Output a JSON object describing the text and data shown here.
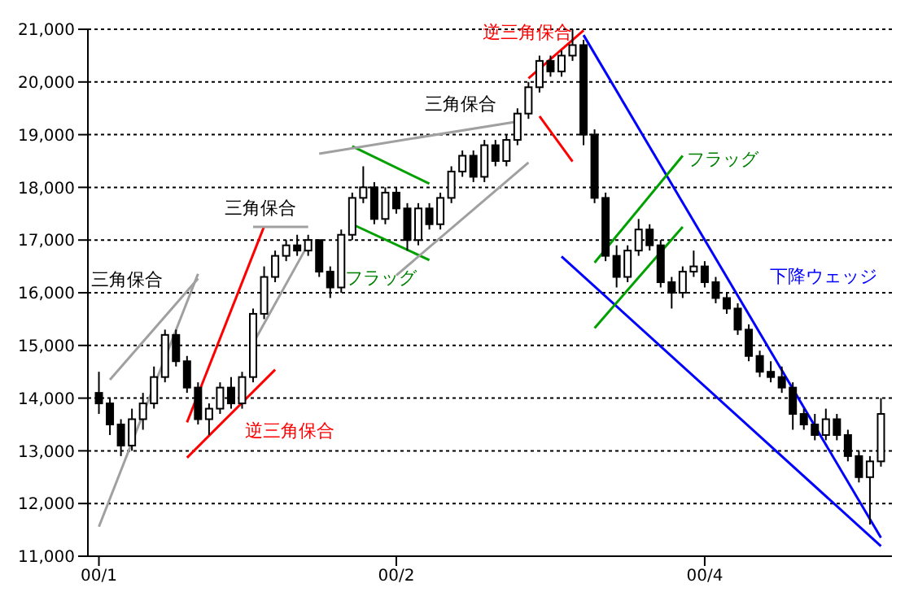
{
  "chart_data": {
    "type": "candlestick",
    "categories": [
      "00/1",
      null,
      null,
      null,
      null,
      null,
      null,
      null,
      null,
      null,
      null,
      null,
      null,
      null,
      null,
      null,
      null,
      null,
      null,
      null,
      null,
      null,
      null,
      null,
      null,
      null,
      null,
      "00/2",
      null,
      null,
      null,
      null,
      null,
      null,
      null,
      null,
      null,
      null,
      null,
      null,
      null,
      null,
      null,
      null,
      null,
      null,
      null,
      null,
      null,
      null,
      null,
      null,
      null,
      null,
      null,
      "00/4",
      null,
      null,
      null,
      null,
      null,
      null,
      null,
      null,
      null,
      null,
      null,
      null,
      null,
      null,
      null,
      null
    ],
    "ohlc": [
      [
        14100,
        14500,
        13700,
        13900
      ],
      [
        13900,
        14000,
        13300,
        13500
      ],
      [
        13500,
        13600,
        12900,
        13100
      ],
      [
        13100,
        13800,
        13000,
        13600
      ],
      [
        13600,
        14100,
        13400,
        13900
      ],
      [
        13900,
        14600,
        13800,
        14400
      ],
      [
        14400,
        15300,
        14300,
        15200
      ],
      [
        15200,
        15300,
        14600,
        14700
      ],
      [
        14700,
        14800,
        14100,
        14200
      ],
      [
        14200,
        14300,
        13500,
        13600
      ],
      [
        13600,
        13900,
        13300,
        13800
      ],
      [
        13800,
        14300,
        13700,
        14200
      ],
      [
        14200,
        14400,
        13800,
        13900
      ],
      [
        13900,
        14500,
        13800,
        14400
      ],
      [
        14400,
        15700,
        14300,
        15600
      ],
      [
        15600,
        16500,
        15500,
        16300
      ],
      [
        16300,
        16800,
        16200,
        16700
      ],
      [
        16700,
        17000,
        16600,
        16900
      ],
      [
        16900,
        17100,
        16700,
        16800
      ],
      [
        16800,
        17100,
        16700,
        17000
      ],
      [
        17000,
        17000,
        16300,
        16400
      ],
      [
        16400,
        16500,
        15900,
        16100
      ],
      [
        16100,
        17200,
        16000,
        17100
      ],
      [
        17100,
        17900,
        17000,
        17800
      ],
      [
        17800,
        18400,
        17700,
        18000
      ],
      [
        18000,
        18100,
        17300,
        17400
      ],
      [
        17400,
        18000,
        17300,
        17900
      ],
      [
        17900,
        18000,
        17500,
        17600
      ],
      [
        17600,
        17700,
        16800,
        17000
      ],
      [
        17000,
        17700,
        16900,
        17600
      ],
      [
        17600,
        17700,
        17200,
        17300
      ],
      [
        17300,
        17900,
        17200,
        17800
      ],
      [
        17800,
        18400,
        17700,
        18300
      ],
      [
        18300,
        18700,
        18200,
        18600
      ],
      [
        18600,
        18700,
        18100,
        18200
      ],
      [
        18200,
        18900,
        18100,
        18800
      ],
      [
        18800,
        18900,
        18400,
        18500
      ],
      [
        18500,
        19000,
        18400,
        18900
      ],
      [
        18900,
        19500,
        18800,
        19400
      ],
      [
        19400,
        20000,
        19300,
        19900
      ],
      [
        19900,
        20500,
        19800,
        20400
      ],
      [
        20400,
        20500,
        20100,
        20200
      ],
      [
        20200,
        20600,
        20100,
        20500
      ],
      [
        20500,
        21000,
        20400,
        20700
      ],
      [
        20700,
        20800,
        18800,
        19000
      ],
      [
        19000,
        19100,
        17700,
        17800
      ],
      [
        17800,
        17900,
        16600,
        16700
      ],
      [
        16700,
        16900,
        16100,
        16300
      ],
      [
        16300,
        16900,
        16200,
        16800
      ],
      [
        16800,
        17400,
        16700,
        17200
      ],
      [
        17200,
        17300,
        16800,
        16900
      ],
      [
        16900,
        17000,
        16100,
        16200
      ],
      [
        16200,
        16300,
        15700,
        16000
      ],
      [
        16000,
        16500,
        15900,
        16400
      ],
      [
        16400,
        16800,
        16300,
        16500
      ],
      [
        16500,
        16600,
        16100,
        16200
      ],
      [
        16200,
        16300,
        15800,
        15900
      ],
      [
        15900,
        16000,
        15600,
        15700
      ],
      [
        15700,
        15800,
        15200,
        15300
      ],
      [
        15300,
        15400,
        14700,
        14800
      ],
      [
        14800,
        14900,
        14400,
        14500
      ],
      [
        14500,
        14700,
        14300,
        14400
      ],
      [
        14400,
        14600,
        14100,
        14200
      ],
      [
        14200,
        14300,
        13400,
        13700
      ],
      [
        13700,
        13800,
        13400,
        13500
      ],
      [
        13500,
        13700,
        13200,
        13300
      ],
      [
        13300,
        13800,
        13200,
        13600
      ],
      [
        13600,
        13700,
        13200,
        13300
      ],
      [
        13300,
        13400,
        12800,
        12900
      ],
      [
        12900,
        13000,
        12400,
        12500
      ],
      [
        12500,
        12900,
        11600,
        12800
      ],
      [
        12800,
        14000,
        12700,
        13700
      ]
    ],
    "series": [
      {
        "type": "line",
        "color": "#a0a0a0",
        "values": [
          11560,
          null,
          null,
          null,
          null,
          null,
          null,
          null,
          null,
          16360,
          null,
          null,
          null,
          null,
          null,
          null,
          null,
          null,
          null,
          null,
          null,
          null,
          null,
          null,
          null,
          null,
          null,
          null,
          null,
          null,
          null,
          null,
          null,
          null,
          null,
          null,
          null,
          null,
          null,
          null,
          null,
          null,
          null,
          null,
          null,
          null,
          null,
          null,
          null,
          null,
          null,
          null,
          null,
          null,
          null,
          null,
          null,
          null,
          null,
          null,
          null,
          null,
          null,
          null,
          null,
          null,
          null,
          null,
          null,
          null,
          null,
          null
        ]
      },
      {
        "type": "line",
        "color": "#a0a0a0",
        "values": [
          null,
          14350,
          null,
          null,
          null,
          null,
          null,
          null,
          null,
          16270,
          null,
          null,
          null,
          null,
          null,
          null,
          null,
          null,
          null,
          null,
          null,
          null,
          null,
          null,
          null,
          null,
          null,
          null,
          null,
          null,
          null,
          null,
          null,
          null,
          null,
          null,
          null,
          null,
          null,
          null,
          null,
          null,
          null,
          null,
          null,
          null,
          null,
          null,
          null,
          null,
          null,
          null,
          null,
          null,
          null,
          null,
          null,
          null,
          null,
          null,
          null,
          null,
          null,
          null,
          null,
          null,
          null,
          null,
          null,
          null,
          null,
          null
        ]
      },
      {
        "type": "line",
        "color": "#ff0000",
        "values": [
          null,
          null,
          null,
          null,
          null,
          null,
          null,
          null,
          12870,
          null,
          null,
          null,
          null,
          null,
          null,
          null,
          14540,
          null,
          null,
          null,
          null,
          null,
          null,
          null,
          null,
          null,
          null,
          null,
          null,
          null,
          null,
          null,
          null,
          null,
          null,
          null,
          null,
          null,
          null,
          null,
          null,
          null,
          null,
          null,
          null,
          null,
          null,
          null,
          null,
          null,
          null,
          null,
          null,
          null,
          null,
          null,
          null,
          null,
          null,
          null,
          null,
          null,
          null,
          null,
          null,
          null,
          null,
          null,
          null,
          null,
          null,
          null
        ]
      },
      {
        "type": "line",
        "color": "#ff0000",
        "values": [
          null,
          null,
          null,
          null,
          null,
          null,
          null,
          null,
          13540,
          null,
          null,
          null,
          null,
          null,
          null,
          17260,
          null,
          null,
          null,
          null,
          null,
          null,
          null,
          null,
          null,
          null,
          null,
          null,
          null,
          null,
          null,
          null,
          null,
          null,
          null,
          null,
          null,
          null,
          null,
          null,
          null,
          null,
          null,
          null,
          null,
          null,
          null,
          null,
          null,
          null,
          null,
          null,
          null,
          null,
          null,
          null,
          null,
          null,
          null,
          null,
          null,
          null,
          null,
          null,
          null,
          null,
          null,
          null,
          null,
          null,
          null,
          null
        ]
      },
      {
        "type": "line",
        "color": "#a0a0a0",
        "values": [
          null,
          null,
          null,
          null,
          null,
          null,
          null,
          null,
          null,
          null,
          null,
          null,
          null,
          null,
          17250,
          null,
          null,
          null,
          null,
          17250,
          null,
          null,
          null,
          null,
          null,
          null,
          null,
          null,
          null,
          null,
          null,
          null,
          null,
          null,
          null,
          null,
          null,
          null,
          null,
          null,
          null,
          null,
          null,
          null,
          null,
          null,
          null,
          null,
          null,
          null,
          null,
          null,
          null,
          null,
          null,
          null,
          null,
          null,
          null,
          null,
          null,
          null,
          null,
          null,
          null,
          null,
          null,
          null,
          null,
          null,
          null,
          null
        ]
      },
      {
        "type": "line",
        "color": "#a0a0a0",
        "values": [
          null,
          null,
          null,
          null,
          null,
          null,
          null,
          null,
          null,
          null,
          null,
          null,
          null,
          null,
          15040,
          null,
          null,
          null,
          null,
          16920,
          null,
          null,
          null,
          null,
          null,
          null,
          null,
          null,
          null,
          null,
          null,
          null,
          null,
          null,
          null,
          null,
          null,
          null,
          null,
          null,
          null,
          null,
          null,
          null,
          null,
          null,
          null,
          null,
          null,
          null,
          null,
          null,
          null,
          null,
          null,
          null,
          null,
          null,
          null,
          null,
          null,
          null,
          null,
          null,
          null,
          null,
          null,
          null,
          null,
          null,
          null,
          null
        ]
      },
      {
        "type": "line",
        "color": "#00a000",
        "values": [
          null,
          null,
          null,
          null,
          null,
          null,
          null,
          null,
          null,
          null,
          null,
          null,
          null,
          null,
          null,
          null,
          null,
          null,
          null,
          null,
          null,
          null,
          null,
          18780,
          null,
          null,
          null,
          null,
          null,
          null,
          18070,
          null,
          null,
          null,
          null,
          null,
          null,
          null,
          null,
          null,
          null,
          null,
          null,
          null,
          null,
          null,
          null,
          null,
          null,
          null,
          null,
          null,
          null,
          null,
          null,
          null,
          null,
          null,
          null,
          null,
          null,
          null,
          null,
          null,
          null,
          null,
          null,
          null,
          null,
          null,
          null,
          null
        ]
      },
      {
        "type": "line",
        "color": "#00a000",
        "values": [
          null,
          null,
          null,
          null,
          null,
          null,
          null,
          null,
          null,
          null,
          null,
          null,
          null,
          null,
          null,
          null,
          null,
          null,
          null,
          null,
          null,
          null,
          null,
          17300,
          null,
          null,
          null,
          null,
          null,
          null,
          16620,
          null,
          null,
          null,
          null,
          null,
          null,
          null,
          null,
          null,
          null,
          null,
          null,
          null,
          null,
          null,
          null,
          null,
          null,
          null,
          null,
          null,
          null,
          null,
          null,
          null,
          null,
          null,
          null,
          null,
          null,
          null,
          null,
          null,
          null,
          null,
          null,
          null,
          null,
          null,
          null,
          null
        ]
      },
      {
        "type": "line",
        "color": "#a0a0a0",
        "values": [
          null,
          null,
          null,
          null,
          null,
          null,
          null,
          null,
          null,
          null,
          null,
          null,
          null,
          null,
          null,
          null,
          null,
          null,
          null,
          null,
          18640,
          null,
          null,
          null,
          null,
          null,
          null,
          null,
          null,
          null,
          null,
          null,
          null,
          null,
          null,
          null,
          null,
          null,
          19250,
          null,
          null,
          null,
          null,
          null,
          null,
          null,
          null,
          null,
          null,
          null,
          null,
          null,
          null,
          null,
          null,
          null,
          null,
          null,
          null,
          null,
          null,
          null,
          null,
          null,
          null,
          null,
          null,
          null,
          null,
          null,
          null,
          null
        ]
      },
      {
        "type": "line",
        "color": "#a0a0a0",
        "values": [
          null,
          null,
          null,
          null,
          null,
          null,
          null,
          null,
          null,
          null,
          null,
          null,
          null,
          null,
          null,
          null,
          null,
          null,
          null,
          null,
          null,
          null,
          null,
          null,
          null,
          null,
          null,
          16330,
          null,
          null,
          null,
          null,
          null,
          null,
          null,
          null,
          null,
          null,
          null,
          18470,
          null,
          null,
          null,
          null,
          null,
          null,
          null,
          null,
          null,
          null,
          null,
          null,
          null,
          null,
          null,
          null,
          null,
          null,
          null,
          null,
          null,
          null,
          null,
          null,
          null,
          null,
          null,
          null,
          null,
          null,
          null,
          null
        ]
      },
      {
        "type": "line",
        "color": "#ff0000",
        "values": [
          null,
          null,
          null,
          null,
          null,
          null,
          null,
          null,
          null,
          null,
          null,
          null,
          null,
          null,
          null,
          null,
          null,
          null,
          null,
          null,
          null,
          null,
          null,
          null,
          null,
          null,
          null,
          null,
          null,
          null,
          null,
          null,
          null,
          null,
          null,
          null,
          null,
          null,
          null,
          20070,
          null,
          null,
          null,
          null,
          20980,
          null,
          null,
          null,
          null,
          null,
          null,
          null,
          null,
          null,
          null,
          null,
          null,
          null,
          null,
          null,
          null,
          null,
          null,
          null,
          null,
          null,
          null,
          null,
          null,
          null,
          null,
          null
        ]
      },
      {
        "type": "line",
        "color": "#ff0000",
        "values": [
          null,
          null,
          null,
          null,
          null,
          null,
          null,
          null,
          null,
          null,
          null,
          null,
          null,
          null,
          null,
          null,
          null,
          null,
          null,
          null,
          null,
          null,
          null,
          null,
          null,
          null,
          null,
          null,
          null,
          null,
          null,
          null,
          null,
          null,
          null,
          null,
          null,
          null,
          null,
          null,
          19350,
          null,
          null,
          18490,
          null,
          null,
          null,
          null,
          null,
          null,
          null,
          null,
          null,
          null,
          null,
          null,
          null,
          null,
          null,
          null,
          null,
          null,
          null,
          null,
          null,
          null,
          null,
          null,
          null,
          null,
          null,
          null
        ]
      },
      {
        "type": "line",
        "color": "#0000ff",
        "values": [
          null,
          null,
          null,
          null,
          null,
          null,
          null,
          null,
          null,
          null,
          null,
          null,
          null,
          null,
          null,
          null,
          null,
          null,
          null,
          null,
          null,
          null,
          null,
          null,
          null,
          null,
          null,
          null,
          null,
          null,
          null,
          null,
          null,
          null,
          null,
          null,
          null,
          null,
          null,
          null,
          null,
          null,
          null,
          null,
          20890,
          null,
          null,
          null,
          null,
          null,
          null,
          null,
          null,
          null,
          null,
          null,
          null,
          null,
          null,
          null,
          null,
          null,
          null,
          null,
          null,
          null,
          null,
          null,
          null,
          null,
          null,
          11350
        ]
      },
      {
        "type": "line",
        "color": "#0000ff",
        "values": [
          null,
          null,
          null,
          null,
          null,
          null,
          null,
          null,
          null,
          null,
          null,
          null,
          null,
          null,
          null,
          null,
          null,
          null,
          null,
          null,
          null,
          null,
          null,
          null,
          null,
          null,
          null,
          null,
          null,
          null,
          null,
          null,
          null,
          null,
          null,
          null,
          null,
          null,
          null,
          null,
          null,
          null,
          16690,
          null,
          null,
          null,
          null,
          null,
          null,
          null,
          null,
          null,
          null,
          null,
          null,
          null,
          null,
          null,
          null,
          null,
          null,
          null,
          null,
          null,
          null,
          null,
          null,
          null,
          null,
          null,
          null,
          11190
        ]
      },
      {
        "type": "line",
        "color": "#00a000",
        "values": [
          null,
          null,
          null,
          null,
          null,
          null,
          null,
          null,
          null,
          null,
          null,
          null,
          null,
          null,
          null,
          null,
          null,
          null,
          null,
          null,
          null,
          null,
          null,
          null,
          null,
          null,
          null,
          null,
          null,
          null,
          null,
          null,
          null,
          null,
          null,
          null,
          null,
          null,
          null,
          null,
          null,
          null,
          null,
          null,
          null,
          16570,
          null,
          null,
          null,
          null,
          null,
          null,
          null,
          18600,
          null,
          null,
          null,
          null,
          null,
          null,
          null,
          null,
          null,
          null,
          null,
          null,
          null,
          null,
          null,
          null,
          null,
          null
        ]
      },
      {
        "type": "line",
        "color": "#00a000",
        "values": [
          null,
          null,
          null,
          null,
          null,
          null,
          null,
          null,
          null,
          null,
          null,
          null,
          null,
          null,
          null,
          null,
          null,
          null,
          null,
          null,
          null,
          null,
          null,
          null,
          null,
          null,
          null,
          null,
          null,
          null,
          null,
          null,
          null,
          null,
          null,
          null,
          null,
          null,
          null,
          null,
          null,
          null,
          null,
          null,
          null,
          15330,
          null,
          null,
          null,
          null,
          null,
          null,
          null,
          17250,
          null,
          null,
          null,
          null,
          null,
          null,
          null,
          null,
          null,
          null,
          null,
          null,
          null,
          null,
          null,
          null,
          null,
          null
        ]
      }
    ],
    "annotations": [
      "三角保合",
      "三角保合",
      "逆三角保合",
      "フラッグ",
      "三角保合",
      "逆三角保合",
      "フラッグ",
      "下降ウェッジ"
    ],
    "ylim": [
      11000,
      21000
    ],
    "yticks": [
      {
        "value": 11000,
        "label": "11,000"
      },
      {
        "value": 12000,
        "label": "12,000"
      },
      {
        "value": 13000,
        "label": "13,000"
      },
      {
        "value": 14000,
        "label": "14,000"
      },
      {
        "value": 15000,
        "label": "15,000"
      },
      {
        "value": 16000,
        "label": "16,000"
      },
      {
        "value": 17000,
        "label": "17,000"
      },
      {
        "value": 18000,
        "label": "18,000"
      },
      {
        "value": 19000,
        "label": "19,000"
      },
      {
        "value": 20000,
        "label": "20,000"
      },
      {
        "value": 21000,
        "label": "21,000"
      }
    ],
    "grid": "y",
    "legend": false
  }
}
